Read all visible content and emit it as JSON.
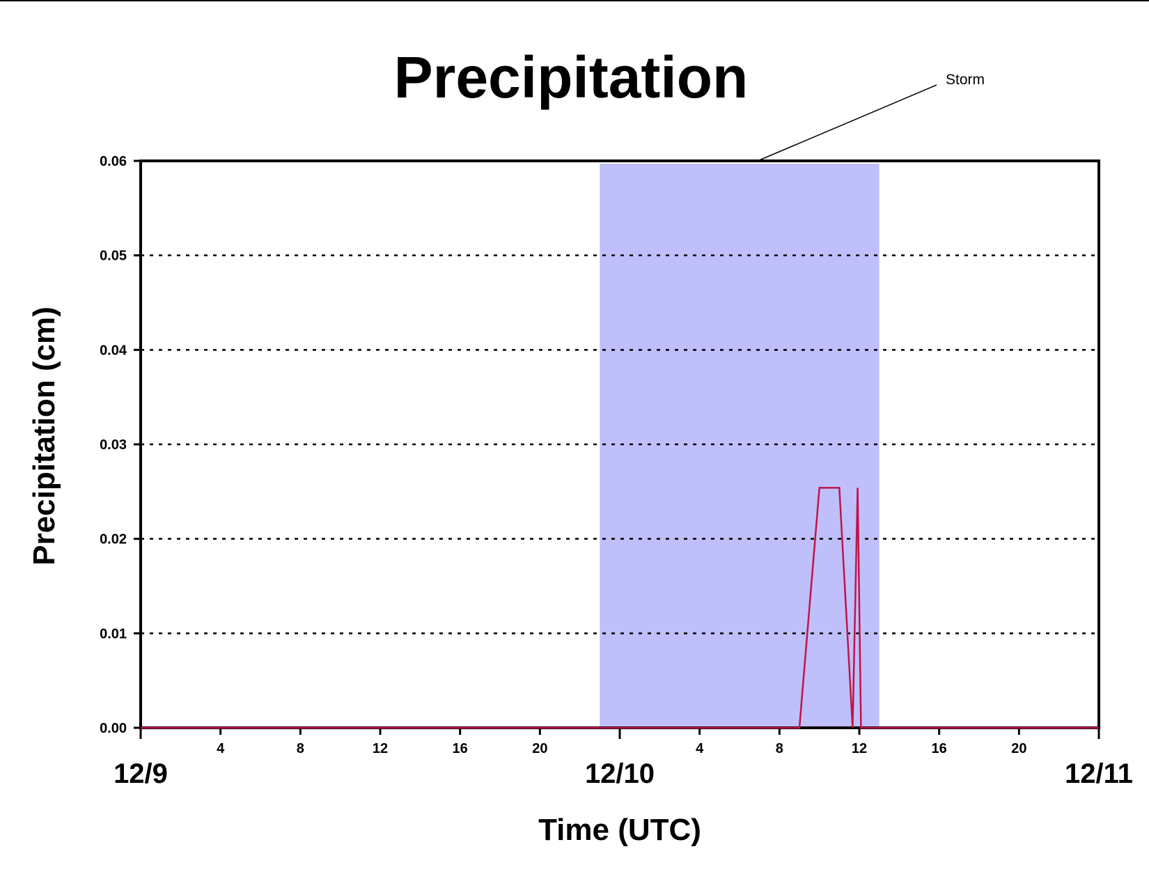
{
  "chart_data": {
    "type": "line",
    "title": "Precipitation",
    "xlabel": "Time (UTC)",
    "ylabel": "Precipitation (cm)",
    "xlim": [
      "12/9 00:00",
      "12/11 00:00"
    ],
    "ylim": [
      0,
      0.06
    ],
    "y_ticks": [
      "0.00",
      "0.01",
      "0.02",
      "0.03",
      "0.04",
      "0.05",
      "0.06"
    ],
    "x_date_labels": [
      "12/9",
      "12/10",
      "12/11"
    ],
    "x_hour_labels": [
      "4",
      "8",
      "12",
      "16",
      "20",
      "4",
      "8",
      "12",
      "16",
      "20"
    ],
    "grid": "horizontal dotted",
    "shaded_region": {
      "label": "Storm",
      "start": "12/9 23:00",
      "end": "12/10 13:00",
      "color": "#bfbffc"
    },
    "series": [
      {
        "color": "#c0144a",
        "x": [
          "12/9 00:00",
          "12/10 09:00",
          "12/10 10:00",
          "12/10 11:00",
          "12/10 11:40",
          "12/10 11:55",
          "12/10 12:05",
          "12/11 00:00"
        ],
        "y": [
          0.0,
          0.0,
          0.0254,
          0.0254,
          0.0,
          0.0254,
          0.0,
          0.0
        ]
      }
    ]
  }
}
